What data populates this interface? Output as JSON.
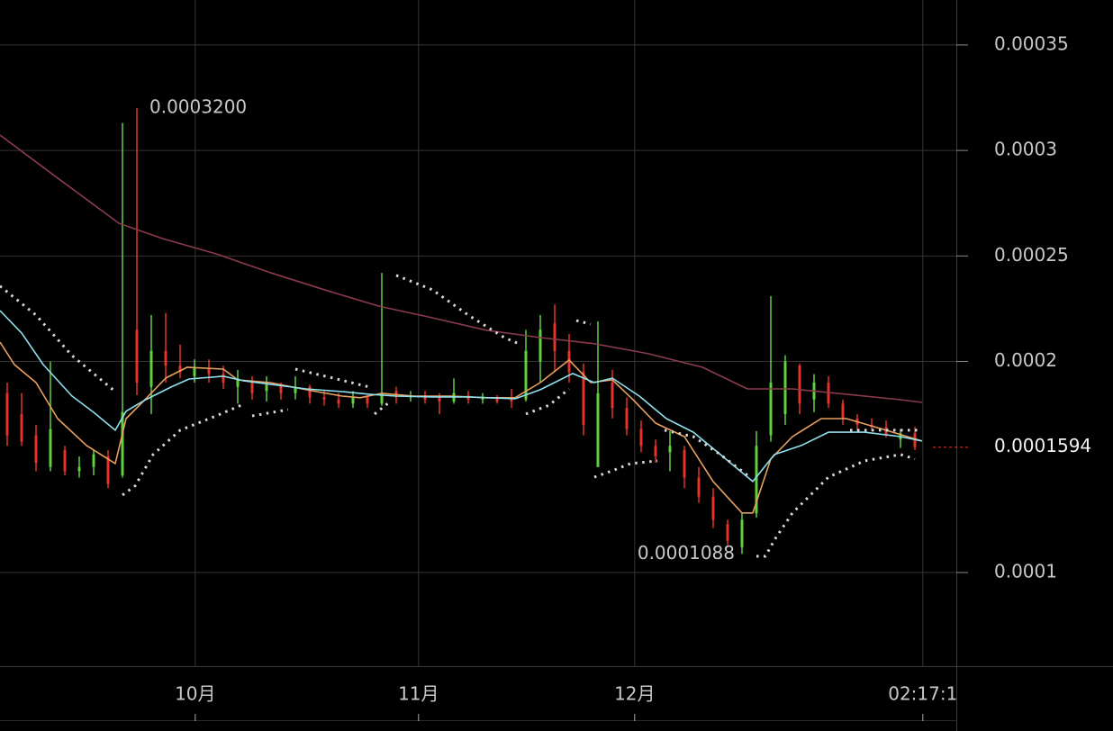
{
  "chart_data": {
    "type": "candlestick",
    "xlim": [
      0,
      132.75
    ],
    "ylim": [
      5.56e-05,
      0.0003713
    ],
    "yticks": [
      0.0001,
      0.0002,
      0.00025,
      0.0003,
      0.00035
    ],
    "xticks": [
      {
        "value": 27.1,
        "label": "10月"
      },
      {
        "value": 58.1,
        "label": "11月"
      },
      {
        "value": 88.1,
        "label": "12月"
      },
      {
        "value": 128.1,
        "label": "02:17:1"
      }
    ],
    "grid": true,
    "up_color": "#5fd13f",
    "down_color": "#e3342b",
    "candles": {
      "x": [
        1,
        3,
        5,
        7,
        9,
        11,
        13,
        15,
        17,
        19,
        21,
        23,
        25,
        27,
        29,
        31,
        33,
        35,
        37,
        39,
        41,
        43,
        45,
        47,
        49,
        51,
        53,
        55,
        57,
        59,
        61,
        63,
        65,
        67,
        69,
        71,
        73,
        75,
        77,
        79,
        81,
        83,
        85,
        87,
        89,
        91,
        93,
        95,
        97,
        99,
        101,
        103,
        105,
        107,
        109,
        111,
        113,
        115,
        117,
        119,
        121,
        123,
        125,
        127
      ],
      "open": [
        0.000185,
        0.000175,
        0.000165,
        0.00015,
        0.000158,
        0.000148,
        0.00015,
        0.000155,
        0.000146,
        0.000215,
        0.000188,
        0.000205,
        0.000198,
        0.000193,
        0.000197,
        0.000194,
        0.000188,
        0.00019,
        0.000186,
        0.000189,
        0.000185,
        0.000188,
        0.000183,
        0.000182,
        0.00018,
        0.000183,
        0.00018,
        0.000186,
        0.000183,
        0.000184,
        0.000183,
        0.000181,
        0.000184,
        0.000182,
        0.000183,
        0.000182,
        0.000182,
        0.0002,
        0.000218,
        0.000205,
        0.000195,
        0.00015,
        0.00019,
        0.000178,
        0.000168,
        0.00016,
        0.000157,
        0.000158,
        0.000145,
        0.000136,
        0.000123,
        0.000112,
        0.000128,
        0.000165,
        0.000175,
        0.000198,
        0.000182,
        0.00019,
        0.00018,
        0.000173,
        0.00017,
        0.000169,
        0.000163,
        0.000166
      ],
      "high": [
        0.00019,
        0.000185,
        0.00017,
        0.0002,
        0.00016,
        0.000155,
        0.000158,
        0.000158,
        0.000313,
        0.00032,
        0.000222,
        0.000223,
        0.000208,
        0.000201,
        0.000201,
        0.000198,
        0.000196,
        0.000193,
        0.000193,
        0.00019,
        0.000193,
        0.000189,
        0.000186,
        0.000185,
        0.000186,
        0.000184,
        0.000242,
        0.000188,
        0.000186,
        0.000186,
        0.000185,
        0.000192,
        0.000186,
        0.000185,
        0.000184,
        0.000187,
        0.000215,
        0.000222,
        0.000227,
        0.000213,
        0.000199,
        0.000219,
        0.000196,
        0.000183,
        0.000172,
        0.000163,
        0.000167,
        0.00016,
        0.00015,
        0.00014,
        0.000125,
        0.000128,
        0.000167,
        0.000231,
        0.000203,
        0.000199,
        0.000194,
        0.000193,
        0.000182,
        0.000175,
        0.000173,
        0.000172,
        0.000168,
        0.000169
      ],
      "low": [
        0.00016,
        0.00016,
        0.000148,
        0.000148,
        0.000146,
        0.000145,
        0.000146,
        0.00014,
        0.000145,
        0.000184,
        0.000175,
        0.00019,
        0.000192,
        0.00019,
        0.00019,
        0.000187,
        0.00018,
        0.000182,
        0.000181,
        0.000182,
        0.000182,
        0.00018,
        0.000179,
        0.000178,
        0.000178,
        0.000178,
        0.000179,
        0.00018,
        0.000181,
        0.00018,
        0.000175,
        0.00018,
        0.00018,
        0.00018,
        0.00018,
        0.000178,
        0.000181,
        0.00019,
        0.000195,
        0.00019,
        0.000165,
        0.00015,
        0.000173,
        0.000165,
        0.000157,
        0.000152,
        0.000148,
        0.00014,
        0.000133,
        0.000121,
        0.000113,
        0.0001088,
        0.000126,
        0.000162,
        0.00017,
        0.000175,
        0.000176,
        0.000178,
        0.00017,
        0.000167,
        0.000167,
        0.000164,
        0.000159,
        0.000158
      ],
      "close": [
        0.000165,
        0.000162,
        0.000152,
        0.000168,
        0.000148,
        0.00015,
        0.000156,
        0.000142,
        0.000176,
        0.00019,
        0.000205,
        0.000198,
        0.000195,
        0.000197,
        0.000194,
        0.00019,
        0.000192,
        0.000185,
        0.000189,
        0.000185,
        0.000188,
        0.000183,
        0.000182,
        0.00018,
        0.000183,
        0.00018,
        0.000185,
        0.000183,
        0.000184,
        0.000182,
        0.000181,
        0.000185,
        0.000182,
        0.000183,
        0.000181,
        0.000181,
        0.000205,
        0.000215,
        0.000205,
        0.000195,
        0.00017,
        0.000185,
        0.000178,
        0.000168,
        0.00016,
        0.000155,
        0.00016,
        0.000145,
        0.000136,
        0.000125,
        0.000115,
        0.000125,
        0.00016,
        0.00019,
        0.0002,
        0.00018,
        0.00019,
        0.00018,
        0.000173,
        0.00017,
        0.000169,
        0.000165,
        0.000166,
        0.0001594
      ]
    },
    "lines": [
      {
        "color": "#e8a060",
        "style": "solid",
        "x": [
          0,
          2,
          5,
          8,
          12,
          16,
          17.5,
          20,
          23,
          26,
          31,
          33,
          37.5,
          42.5,
          47.5,
          50,
          53,
          57.5,
          62.5,
          67.5,
          71.5,
          75,
          79,
          82,
          85,
          88,
          91,
          95,
          99,
          103,
          104.5,
          107,
          110,
          114,
          117.5,
          123,
          128
        ],
        "values": [
          0.0002092,
          0.0001985,
          0.00019,
          0.0001729,
          0.0001602,
          0.0001516,
          0.0001729,
          0.0001815,
          0.0001921,
          0.0001973,
          0.0001964,
          0.0001913,
          0.00019,
          0.0001866,
          0.0001836,
          0.0001828,
          0.0001849,
          0.0001836,
          0.0001836,
          0.0001828,
          0.0001828,
          0.00019,
          0.0002007,
          0.00019,
          0.0001913,
          0.0001815,
          0.0001708,
          0.0001644,
          0.0001431,
          0.0001282,
          0.0001282,
          0.0001538,
          0.0001644,
          0.0001729,
          0.0001729,
          0.0001674,
          0.0001623
        ]
      },
      {
        "color": "#8fe0ee",
        "style": "solid",
        "x": [
          0,
          3,
          6,
          10,
          13,
          16,
          17.5,
          20,
          23.75,
          26.25,
          31,
          33.75,
          37.5,
          42.5,
          47.5,
          51.25,
          55,
          60,
          65,
          71.5,
          75,
          79.5,
          82.5,
          85,
          88.75,
          92.5,
          96.25,
          100,
          104.5,
          107.5,
          111.25,
          115,
          120,
          125,
          128
        ],
        "values": [
          0.0002241,
          0.0002135,
          0.0001985,
          0.0001836,
          0.0001759,
          0.0001674,
          0.0001764,
          0.0001815,
          0.0001879,
          0.0001917,
          0.000193,
          0.0001909,
          0.0001892,
          0.000187,
          0.0001857,
          0.0001845,
          0.0001836,
          0.0001832,
          0.0001832,
          0.0001823,
          0.0001866,
          0.0001943,
          0.00019,
          0.0001921,
          0.0001836,
          0.0001729,
          0.0001665,
          0.0001559,
          0.0001431,
          0.0001559,
          0.0001602,
          0.0001665,
          0.0001665,
          0.0001644,
          0.0001623
        ]
      },
      {
        "color": "#8a3a4c",
        "style": "solid",
        "x": [
          0,
          8,
          16.5,
          22.5,
          30,
          37.5,
          45,
          52.5,
          60,
          67.5,
          75,
          82.5,
          90,
          97.5,
          103.75,
          110,
          117.5,
          125,
          128
        ],
        "values": [
          0.0003073,
          0.0002869,
          0.0002655,
          0.0002583,
          0.000251,
          0.0002421,
          0.000234,
          0.0002263,
          0.0002207,
          0.0002148,
          0.0002113,
          0.0002084,
          0.0002037,
          0.0001973,
          0.000187,
          0.000187,
          0.0001845,
          0.0001819,
          0.0001806
        ]
      },
      {
        "color": "#d8d8d8",
        "style": "dotted",
        "x": [
          0,
          5,
          10,
          16,
          null,
          17,
          18.75,
          21.25,
          25,
          30,
          33.5,
          null,
          35,
          40,
          null,
          41,
          46.25,
          51.25,
          null,
          52,
          54,
          null,
          55,
          60,
          65,
          70,
          72,
          null,
          73,
          76.25,
          79,
          null,
          80,
          82,
          null,
          82.5,
          85,
          87.5,
          91.25,
          null,
          92.25,
          96.25,
          100,
          103.75,
          null,
          105,
          106.25,
          107.5,
          110,
          115,
          120,
          125,
          127,
          null,
          118,
          128
        ],
        "values": [
          0.0002357,
          0.000222,
          0.0002028,
          0.0001857,
          null,
          0.0001367,
          0.000141,
          0.0001559,
          0.0001674,
          0.0001742,
          0.0001793,
          null,
          0.0001742,
          0.0001772,
          null,
          0.0001964,
          0.0001921,
          0.0001879,
          null,
          0.0001751,
          0.0001806,
          null,
          0.0002408,
          0.000234,
          0.000222,
          0.0002113,
          0.0002084,
          null,
          0.0001751,
          0.0001793,
          0.000187,
          null,
          0.0002194,
          0.0002177,
          null,
          0.0001452,
          0.0001482,
          0.0001516,
          0.0001529,
          null,
          0.0001674,
          0.0001644,
          0.0001559,
          0.0001461,
          null,
          0.0001077,
          0.0001077,
          0.0001154,
          0.0001282,
          0.0001452,
          0.0001529,
          0.0001559,
          0.0001538,
          null,
          0.0001674,
          0.0001674
        ]
      }
    ],
    "annotations": [
      {
        "text": "0.0003200",
        "x": 19,
        "y": 0.00032,
        "side": "right"
      },
      {
        "text": "0.0001088",
        "x": 103,
        "y": 0.0001088,
        "side": "left"
      }
    ],
    "last_price": {
      "value": 0.0001594,
      "label": "0.0001594"
    }
  }
}
